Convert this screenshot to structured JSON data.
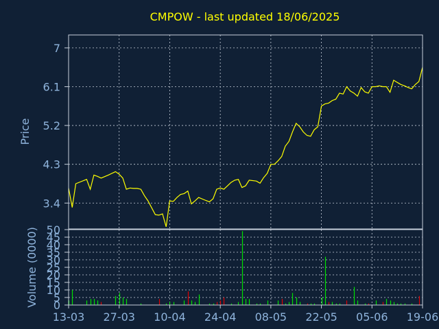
{
  "title": "CMPOW - last updated 18/06/2025",
  "colors": {
    "background": "#102035",
    "title": "#ffff00",
    "axis_text": "#8fb4dc",
    "frame": "#c8d0dc",
    "price_line": "#ffff00",
    "volume_up": "#00e000",
    "volume_down": "#e00000"
  },
  "chart_data": [
    {
      "type": "line",
      "name": "price",
      "ylabel": "Price",
      "ylim": [
        2.8,
        7.3
      ],
      "yticks": [
        "3.4",
        "4.3",
        "5.2",
        "6.1",
        "7"
      ],
      "grid": true,
      "xticks": [
        {
          "day": 0,
          "label": "13-03"
        },
        {
          "day": 14,
          "label": "27-03"
        },
        {
          "day": 28,
          "label": "10-04"
        },
        {
          "day": 42,
          "label": "24-04"
        },
        {
          "day": 56,
          "label": "08-05"
        },
        {
          "day": 70,
          "label": "22-05"
        },
        {
          "day": 84,
          "label": "05-06"
        },
        {
          "day": 98,
          "label": "19-06"
        }
      ],
      "x": [
        0,
        1,
        2,
        5,
        6,
        7,
        8,
        9,
        11,
        13,
        14,
        15,
        16,
        17,
        18,
        19,
        20,
        21,
        22,
        24,
        25,
        26,
        27,
        28,
        29,
        30,
        31,
        32,
        33,
        34,
        35,
        36,
        38,
        39,
        40,
        41,
        42,
        43,
        44,
        45,
        46,
        47,
        48,
        49,
        50,
        52,
        53,
        54,
        55,
        56,
        57,
        58,
        59,
        60,
        61,
        62,
        63,
        64,
        65,
        66,
        67,
        68,
        69,
        70,
        71,
        72,
        73,
        74,
        75,
        76,
        77,
        78,
        79,
        80,
        81,
        82,
        83,
        84,
        85,
        86,
        87,
        88,
        89,
        90,
        91,
        92,
        93,
        94,
        95,
        96,
        97,
        98
      ],
      "y": [
        3.75,
        3.3,
        3.85,
        3.95,
        3.72,
        4.05,
        4.02,
        3.98,
        4.05,
        4.13,
        4.07,
        3.98,
        3.72,
        3.75,
        3.74,
        3.74,
        3.72,
        3.57,
        3.45,
        3.13,
        3.12,
        3.15,
        2.85,
        3.45,
        3.44,
        3.53,
        3.6,
        3.62,
        3.68,
        3.38,
        3.45,
        3.53,
        3.46,
        3.43,
        3.5,
        3.72,
        3.75,
        3.72,
        3.8,
        3.88,
        3.93,
        3.95,
        3.76,
        3.8,
        3.93,
        3.91,
        3.86,
        3.99,
        4.09,
        4.3,
        4.3,
        4.38,
        4.48,
        4.72,
        4.83,
        5.05,
        5.25,
        5.17,
        5.05,
        4.97,
        4.95,
        5.1,
        5.17,
        5.65,
        5.7,
        5.72,
        5.78,
        5.81,
        5.95,
        5.93,
        6.1,
        6.0,
        5.95,
        5.88,
        6.08,
        5.98,
        5.95,
        6.1,
        6.1,
        6.12,
        6.1,
        6.1,
        5.97,
        6.25,
        6.2,
        6.15,
        6.12,
        6.08,
        6.05,
        6.15,
        6.22,
        6.55
      ]
    },
    {
      "type": "bar",
      "name": "volume",
      "ylabel": "Volume (0000)",
      "ylim": [
        0,
        50
      ],
      "yticks": [
        "0",
        "5",
        "10",
        "15",
        "20",
        "25",
        "30",
        "35",
        "40",
        "45",
        "50"
      ],
      "grid": true,
      "x": [
        0,
        1,
        5,
        6,
        7,
        8,
        9,
        13,
        14,
        15,
        16,
        20,
        25,
        27,
        28,
        29,
        32,
        33,
        34,
        35,
        36,
        39,
        40,
        41,
        42,
        43,
        45,
        47,
        48,
        49,
        50,
        52,
        53,
        55,
        58,
        59,
        60,
        61,
        62,
        63,
        64,
        66,
        67,
        68,
        70,
        71,
        72,
        73,
        74,
        75,
        77,
        79,
        80,
        82,
        83,
        85,
        87,
        88,
        89,
        90,
        91,
        92,
        93,
        95,
        97
      ],
      "values": [
        3,
        10,
        3,
        4,
        4,
        3,
        2,
        6,
        8,
        5,
        4,
        1,
        4,
        1,
        2,
        2,
        3,
        9,
        3,
        2,
        7,
        1,
        1,
        2,
        3,
        5,
        1,
        2,
        49,
        4,
        4,
        1,
        1,
        3,
        3,
        4,
        1,
        2,
        8,
        5,
        2,
        1,
        1,
        1,
        5,
        32,
        2,
        2,
        1,
        1,
        3,
        12,
        3,
        1,
        1,
        3,
        2,
        4,
        3,
        2,
        1,
        1,
        1,
        1,
        6
      ],
      "up": [
        true,
        true,
        true,
        true,
        true,
        true,
        false,
        true,
        true,
        true,
        true,
        true,
        false,
        true,
        true,
        true,
        true,
        false,
        true,
        true,
        true,
        true,
        true,
        false,
        false,
        false,
        true,
        true,
        true,
        true,
        true,
        true,
        true,
        true,
        true,
        false,
        true,
        true,
        true,
        true,
        true,
        false,
        true,
        true,
        true,
        true,
        false,
        true,
        true,
        true,
        false,
        true,
        true,
        true,
        false,
        true,
        false,
        true,
        true,
        true,
        true,
        true,
        true,
        true,
        false
      ]
    }
  ]
}
